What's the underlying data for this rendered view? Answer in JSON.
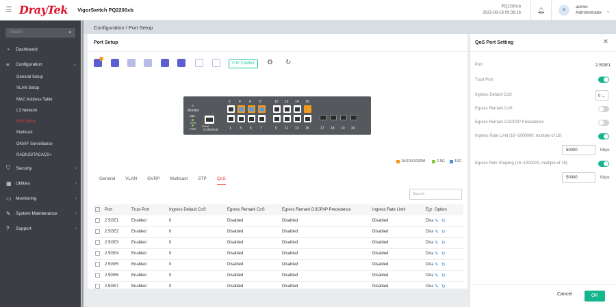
{
  "brand": "DrayTek",
  "model": "VigorSwitch PQ2200xb",
  "device": {
    "name": "PQ2200xb",
    "datetime": "2022-08-16 09:36:16"
  },
  "user": {
    "avatar_letter": "a",
    "name": "admin",
    "role": "Administrator"
  },
  "sidebar": {
    "search_placeholder": "Search",
    "items": [
      {
        "label": "Dashboard",
        "icon": "dashboard-icon"
      },
      {
        "label": "Configuration",
        "icon": "sliders-icon"
      },
      {
        "label": "Security",
        "icon": "shield-icon"
      },
      {
        "label": "Utilities",
        "icon": "grid-icon"
      },
      {
        "label": "Monitoring",
        "icon": "monitor-icon"
      },
      {
        "label": "System Maintenance",
        "icon": "wrench-icon"
      },
      {
        "label": "Support",
        "icon": "help-icon"
      }
    ],
    "sub_items": [
      "General Setup",
      "VLAN Setup",
      "MAC Address Table",
      "L3 Network",
      "Port Setup",
      "Multicast",
      "ONVIF Surveillance",
      "RADIUS/TACACS+"
    ]
  },
  "breadcrumb": "Configuration / Port Setup",
  "panel": {
    "title": "Port Setup",
    "ip_conflict": "0 IP Conflict"
  },
  "switch": {
    "monitor": "Monitor",
    "alert": "Alert",
    "sys": "SYS",
    "pwr": "PWR",
    "reset": "Reset",
    "console": "CONSOLE",
    "top_ports": [
      "2",
      "4",
      "6",
      "8",
      "10",
      "12",
      "14",
      "16"
    ],
    "bottom_ports": [
      "1",
      "3",
      "5",
      "7",
      "9",
      "11",
      "13",
      "15"
    ],
    "sfp_ports": [
      "17",
      "18",
      "19",
      "20"
    ]
  },
  "legend": [
    {
      "label": "10/100/1000M",
      "color": "#f29a1e"
    },
    {
      "label": "2.5G",
      "color": "#8cc63f"
    },
    {
      "label": "10G",
      "color": "#4a90e2"
    }
  ],
  "tabs": [
    "General",
    "VLAN",
    "GVRP",
    "Multicast",
    "STP",
    "QoS"
  ],
  "table": {
    "search_placeholder": "Search",
    "headers": [
      "Port",
      "Trust Port",
      "Ingress Default CoS",
      "Egress Remark CoS",
      "Egress Remark DSCP/IP Precedence",
      "Ingress Rate Limit",
      "Egr",
      "Option"
    ],
    "rows": [
      [
        "2.5GE1",
        "Enabled",
        "0",
        "Disabled",
        "Disabled",
        "Disabled",
        "Disa"
      ],
      [
        "2.5GE2",
        "Enabled",
        "0",
        "Disabled",
        "Disabled",
        "Disabled",
        "Disa"
      ],
      [
        "2.5GE3",
        "Enabled",
        "0",
        "Disabled",
        "Disabled",
        "Disabled",
        "Disa"
      ],
      [
        "2.5GE4",
        "Enabled",
        "0",
        "Disabled",
        "Disabled",
        "Disabled",
        "Disa"
      ],
      [
        "2.5GE5",
        "Enabled",
        "0",
        "Disabled",
        "Disabled",
        "Disabled",
        "Disa"
      ],
      [
        "2.5GE6",
        "Enabled",
        "0",
        "Disabled",
        "Disabled",
        "Disabled",
        "Disa"
      ],
      [
        "2.5GE7",
        "Enabled",
        "0",
        "Disabled",
        "Disabled",
        "Disabled",
        "Disa"
      ]
    ]
  },
  "qos": {
    "title": "QoS Port Setting",
    "port_label": "Port",
    "port_value": "2.5GE1",
    "trust_port": "Trust Port",
    "ingress_default_cos": "Ingress Default CoS",
    "cos_value": "0",
    "egress_remark_cos": "Egress Remark CoS",
    "egress_remark_dscp": "Egress Remark DSCP/IP Precedence",
    "ingress_rate_limit": "Ingress Rate Limit",
    "ingress_rate_hint": "(16~1000000, multiple of 16)",
    "ingress_rate_value": "50000",
    "egress_rate_shaping": "Egress Rate Shaping",
    "egress_rate_hint": "(16~1000000, multiple of 16)",
    "egress_rate_value": "50000",
    "unit": "Kbps",
    "cancel": "Cancel",
    "ok": "OK"
  }
}
